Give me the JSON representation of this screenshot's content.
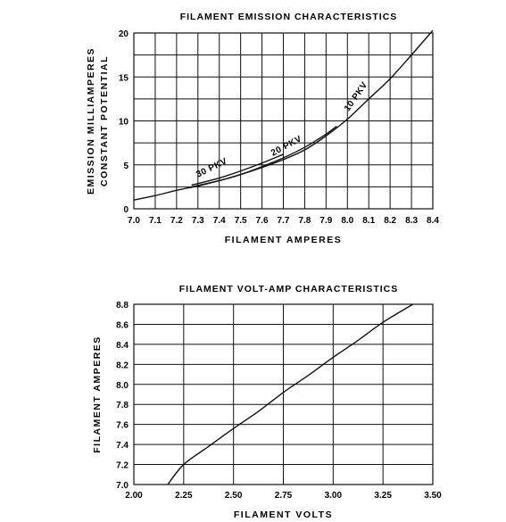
{
  "chart_data": [
    {
      "type": "line",
      "title": "FILAMENT EMISSION CHARACTERISTICS",
      "xlabel": "FILAMENT AMPERES",
      "ylabel": [
        "EMISSION MILLIAMPERES",
        "CONSTANT POTENTIAL"
      ],
      "xlim": [
        7.0,
        8.4
      ],
      "ylim": [
        0,
        20
      ],
      "x_ticks": [
        "7.0",
        "7.1",
        "7.2",
        "7.3",
        "7.4",
        "7.5",
        "7.6",
        "7.7",
        "7.8",
        "7.9",
        "8.0",
        "8.1",
        "8.2",
        "8.3",
        "8.4"
      ],
      "y_ticks": [
        "0",
        "5",
        "10",
        "15",
        "20"
      ],
      "grid": true,
      "series": [
        {
          "name": "10 PKV",
          "x": [
            7.0,
            7.1,
            7.2,
            7.3,
            7.4,
            7.5,
            7.6,
            7.7,
            7.8,
            7.9,
            8.0,
            8.1,
            8.2,
            8.3,
            8.4
          ],
          "y": [
            1.0,
            1.5,
            2.1,
            2.6,
            3.2,
            3.9,
            4.7,
            5.6,
            6.7,
            8.3,
            10.2,
            12.5,
            14.8,
            17.5,
            20.3
          ]
        },
        {
          "name": "20 PKV",
          "x": [
            7.27,
            7.4,
            7.5,
            7.6,
            7.7,
            7.8,
            7.9,
            7.95
          ],
          "y": [
            2.5,
            3.2,
            3.9,
            4.8,
            5.8,
            7.0,
            8.5,
            9.4
          ]
        },
        {
          "name": "30 PKV",
          "x": [
            7.27,
            7.4,
            7.5,
            7.6,
            7.7
          ],
          "y": [
            2.7,
            3.5,
            4.3,
            5.2,
            6.2
          ]
        }
      ]
    },
    {
      "type": "line",
      "title": "FILAMENT VOLT-AMP CHARACTERISTICS",
      "xlabel": "FILAMENT VOLTS",
      "ylabel": "FILAMENT AMPERES",
      "xlim": [
        2.0,
        3.5
      ],
      "ylim": [
        7.0,
        8.8
      ],
      "x_ticks": [
        "2.00",
        "2.25",
        "2.50",
        "2.75",
        "3.00",
        "3.25",
        "3.50"
      ],
      "y_ticks": [
        "7.0",
        "7.2",
        "7.4",
        "7.6",
        "7.8",
        "8.0",
        "8.2",
        "8.4",
        "8.6",
        "8.8"
      ],
      "grid": true,
      "series": [
        {
          "name": "",
          "x": [
            2.17,
            2.25,
            2.375,
            2.5,
            2.625,
            2.75,
            2.875,
            3.0,
            3.125,
            3.25,
            3.4
          ],
          "y": [
            7.0,
            7.2,
            7.38,
            7.56,
            7.73,
            7.92,
            8.09,
            8.27,
            8.44,
            8.62,
            8.8
          ]
        }
      ]
    }
  ]
}
